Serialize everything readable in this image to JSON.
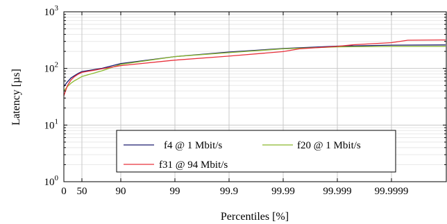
{
  "chart_data": {
    "type": "line",
    "title": "",
    "xlabel": "Percentiles [%]",
    "ylabel": "Latency [µs]",
    "y_scale": "log",
    "ylim": [
      1,
      1000
    ],
    "y_ticks": [
      {
        "value": 1,
        "label_base": "10",
        "label_exp": "0"
      },
      {
        "value": 10,
        "label_base": "10",
        "label_exp": "1"
      },
      {
        "value": 100,
        "label_base": "10",
        "label_exp": "2"
      },
      {
        "value": 1000,
        "label_base": "10",
        "label_exp": "3"
      }
    ],
    "x_scale": "inverse-percentile (nines)",
    "x_ticks": [
      "0",
      "50",
      "90",
      "99",
      "99.9",
      "99.99",
      "99.999",
      "99.9999"
    ],
    "xlim": [
      0,
      99.99999
    ],
    "grid": true,
    "legend_position": "lower-center",
    "series": [
      {
        "name": "f4 @ 1 Mbit/s",
        "color": "#1a1a6e",
        "points": [
          [
            0,
            48
          ],
          [
            10,
            58
          ],
          [
            20,
            68
          ],
          [
            30,
            75
          ],
          [
            40,
            82
          ],
          [
            50,
            88
          ],
          [
            70,
            100
          ],
          [
            90,
            122
          ],
          [
            99,
            162
          ],
          [
            99.9,
            195
          ],
          [
            99.99,
            225
          ],
          [
            99.999,
            248
          ],
          [
            99.9999,
            258
          ],
          [
            99.99999,
            260
          ]
        ]
      },
      {
        "name": "f20 @ 1 Mbit/s",
        "color": "#8ab82c",
        "points": [
          [
            0,
            40
          ],
          [
            10,
            48
          ],
          [
            20,
            55
          ],
          [
            30,
            61
          ],
          [
            40,
            66
          ],
          [
            50,
            72
          ],
          [
            70,
            90
          ],
          [
            90,
            118
          ],
          [
            99,
            162
          ],
          [
            99.9,
            190
          ],
          [
            99.99,
            222
          ],
          [
            99.999,
            240
          ],
          [
            99.9999,
            245
          ],
          [
            99.99999,
            245
          ]
        ]
      },
      {
        "name": "f31 @ 94 Mbit/s",
        "color": "#e8303a",
        "points": [
          [
            0,
            33
          ],
          [
            10,
            50
          ],
          [
            20,
            63
          ],
          [
            30,
            72
          ],
          [
            40,
            79
          ],
          [
            50,
            85
          ],
          [
            70,
            98
          ],
          [
            90,
            112
          ],
          [
            99,
            140
          ],
          [
            99.9,
            165
          ],
          [
            99.99,
            198
          ],
          [
            99.995,
            222
          ],
          [
            99.999,
            245
          ],
          [
            99.9995,
            262
          ],
          [
            99.9999,
            285
          ],
          [
            99.99995,
            315
          ],
          [
            99.99999,
            318
          ]
        ]
      }
    ]
  }
}
